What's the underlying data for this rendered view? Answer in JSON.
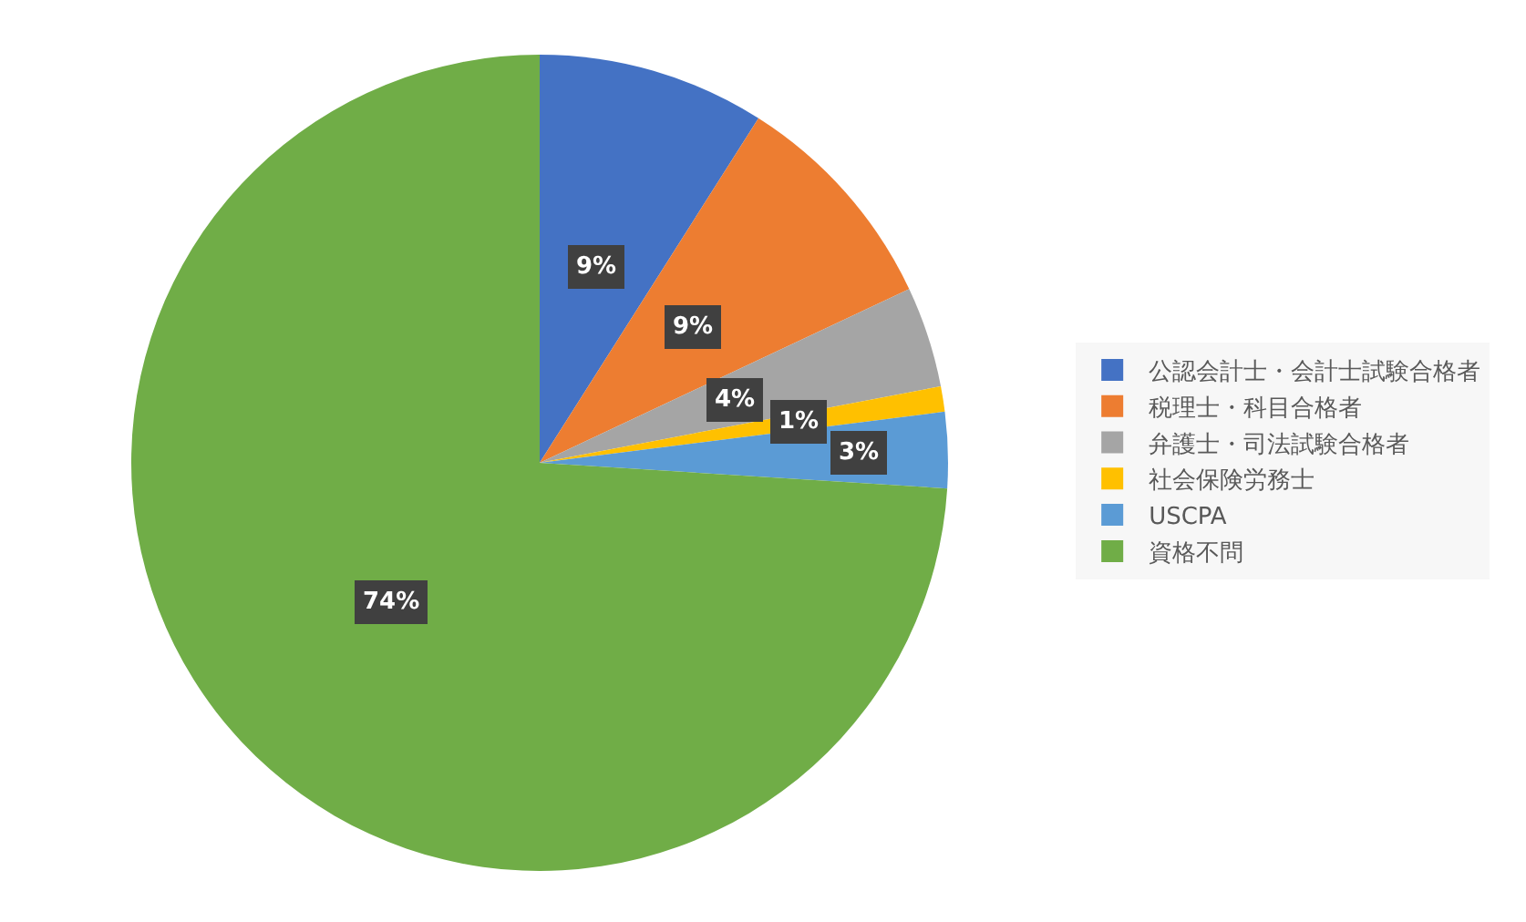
{
  "chart_data": {
    "type": "pie",
    "categories": [
      "公認会計士・会計士試験合格者",
      "税理士・科目合格者",
      "弁護士・司法試験合格者",
      "社会保険労務士",
      "USCPA",
      "資格不問"
    ],
    "values": [
      9,
      9,
      4,
      1,
      3,
      74
    ],
    "colors": [
      "#4472c4",
      "#ed7d31",
      "#a5a5a5",
      "#ffc000",
      "#5b9bd5",
      "#70ad47"
    ],
    "value_labels": [
      "9%",
      "9%",
      "4%",
      "1%",
      "3%",
      "74%"
    ],
    "legend": "right"
  }
}
